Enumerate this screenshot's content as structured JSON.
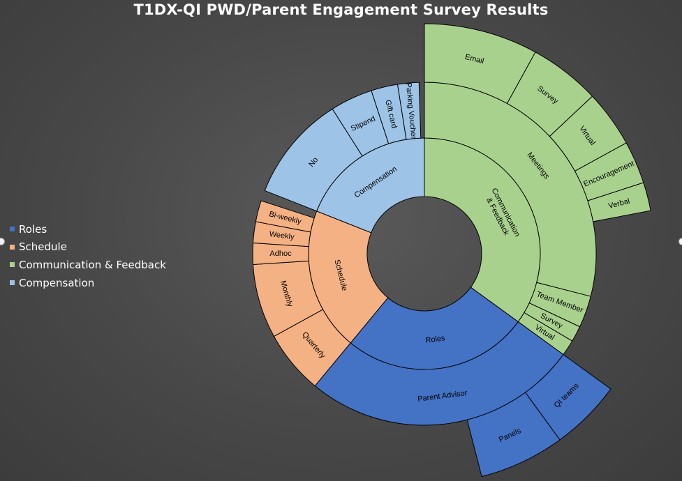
{
  "chart_data": {
    "type": "sunburst",
    "title": "T1DX-QI PWD/Parent Engagement Survey Results",
    "legend_position": "left",
    "series": [
      {
        "name": "Roles",
        "color": "#4472c4",
        "value": 26,
        "children": [
          {
            "name": "Roles",
            "value": 26,
            "children": [
              {
                "name": "Parent Advisor",
                "value": 26,
                "children": [
                  {
                    "name": "QI teams",
                    "value": 5
                  },
                  {
                    "name": "Panels",
                    "value": 6
                  }
                ]
              }
            ]
          }
        ]
      },
      {
        "name": "Schedule",
        "color": "#f4b183",
        "value": 20,
        "children": [
          {
            "name": "Schedule",
            "value": 20,
            "children": [
              {
                "name": "Quarterly",
                "value": 6
              },
              {
                "name": "Monthly",
                "value": 7
              },
              {
                "name": "Adhoc",
                "value": 2
              },
              {
                "name": "Weekly",
                "value": 2
              },
              {
                "name": "Bi-weekly",
                "value": 2
              }
            ]
          }
        ]
      },
      {
        "name": "Compensation",
        "color": "#9dc3e6",
        "value": 19,
        "children": [
          {
            "name": "Compensation",
            "value": 19,
            "children": [
              {
                "name": "No",
                "value": 10
              },
              {
                "name": "Stipend",
                "value": 4
              },
              {
                "name": "Gift card",
                "value": 2.5
              },
              {
                "name": "Parking Voucher",
                "value": 2
              }
            ]
          }
        ]
      },
      {
        "name": "Communication & Feedback",
        "color": "#a9d18e",
        "value": 35,
        "children": [
          {
            "name": "Communication & Feedback",
            "value": 35,
            "children": [
              {
                "name": "Meetings",
                "value": 29,
                "children": [
                  {
                    "name": "Email",
                    "value": 8
                  },
                  {
                    "name": "Survey",
                    "value": 5
                  },
                  {
                    "name": "Virtual",
                    "value": 4
                  },
                  {
                    "name": "Encouragement",
                    "value": 3
                  },
                  {
                    "name": "Verbal",
                    "value": 2
                  }
                ]
              },
              {
                "name": "Team Member",
                "value": 3
              },
              {
                "name": "Survey",
                "value": 1.5
              },
              {
                "name": "Virtual",
                "value": 1.5
              }
            ]
          }
        ]
      }
    ]
  },
  "legend": [
    {
      "label": "Roles",
      "color": "#4472c4"
    },
    {
      "label": "Schedule",
      "color": "#f4b183"
    },
    {
      "label": "Communication & Feedback",
      "color": "#a9d18e"
    },
    {
      "label": "Compensation",
      "color": "#9dc3e6"
    }
  ]
}
